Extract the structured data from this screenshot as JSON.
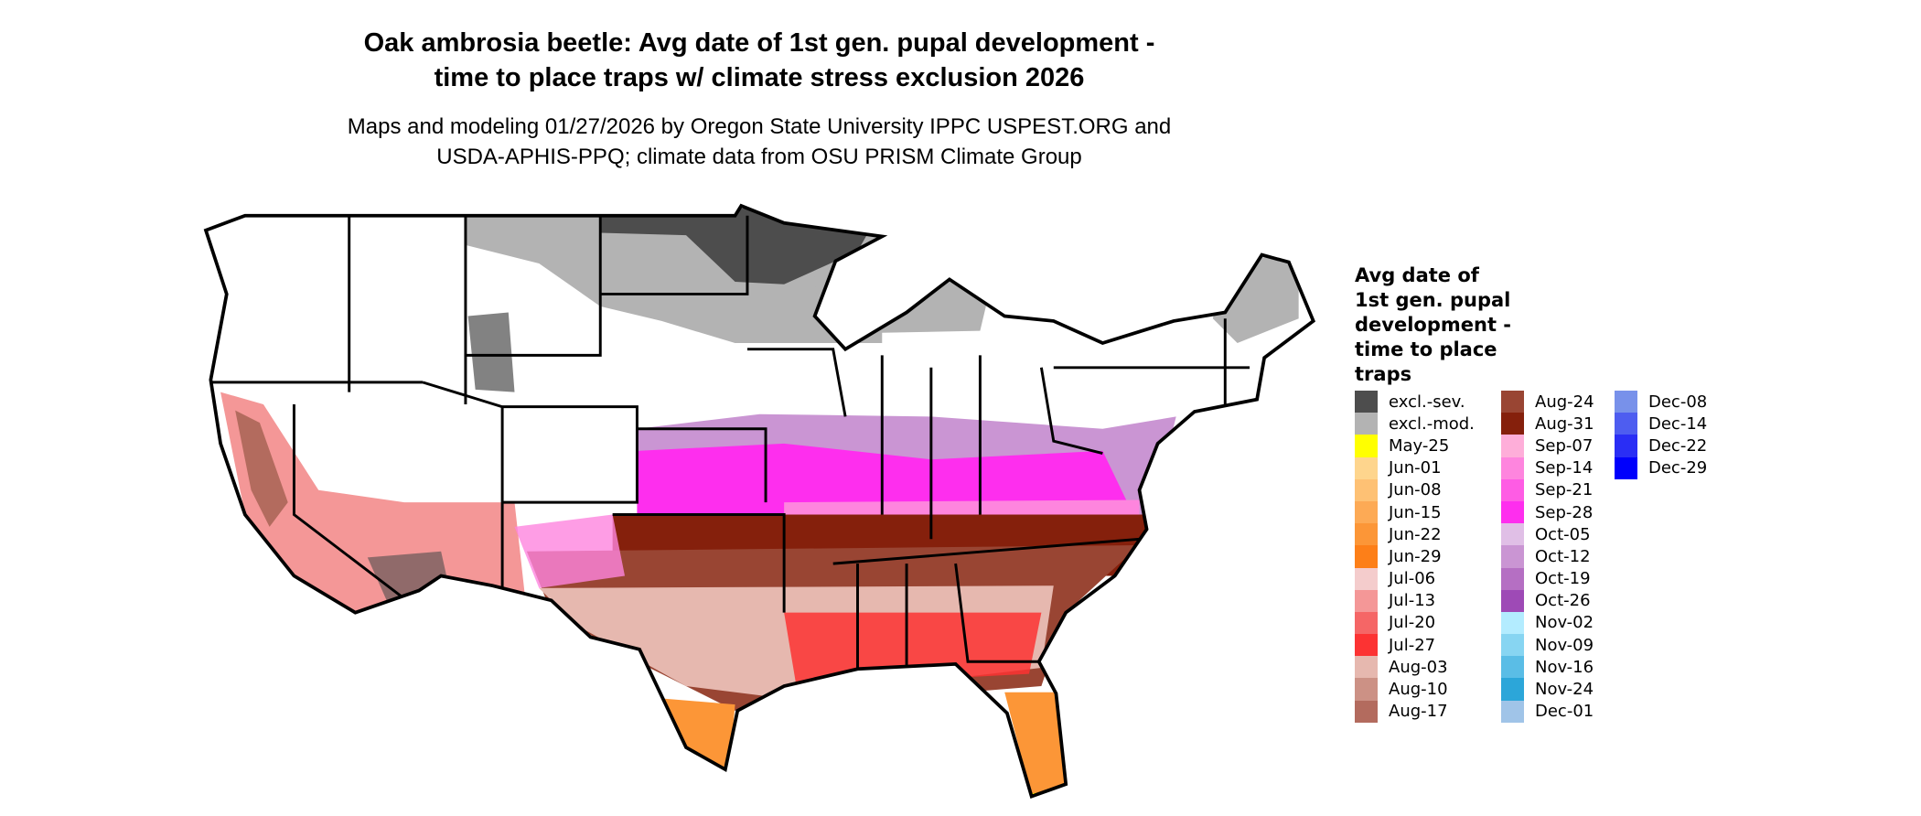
{
  "title": {
    "line1": "Oak ambrosia beetle: Avg date of 1st gen. pupal development -",
    "line2": "time to place traps w/ climate stress exclusion 2026"
  },
  "subtitle": {
    "line1": "Maps and modeling 01/27/2026 by Oregon State University IPPC USPEST.ORG and",
    "line2": "USDA-APHIS-PPQ; climate data from OSU PRISM Climate Group"
  },
  "legend": {
    "title_lines": [
      "Avg date of",
      "1st gen. pupal",
      "development -",
      "time to place",
      "traps"
    ],
    "columns": [
      [
        {
          "label": "excl.-sev.",
          "color": "#4d4d4d"
        },
        {
          "label": "excl.-mod.",
          "color": "#b3b3b3"
        },
        {
          "label": "May-25",
          "color": "#ffff00"
        },
        {
          "label": "Jun-01",
          "color": "#fed58d"
        },
        {
          "label": "Jun-08",
          "color": "#fec174"
        },
        {
          "label": "Jun-15",
          "color": "#fdaa55"
        },
        {
          "label": "Jun-22",
          "color": "#fc9637"
        },
        {
          "label": "Jun-29",
          "color": "#fd7f18"
        },
        {
          "label": "Jul-06",
          "color": "#f4cccc"
        },
        {
          "label": "Jul-13",
          "color": "#f49797"
        },
        {
          "label": "Jul-20",
          "color": "#f56666"
        },
        {
          "label": "Jul-27",
          "color": "#fc3333"
        },
        {
          "label": "Aug-03",
          "color": "#e6b8af"
        },
        {
          "label": "Aug-10",
          "color": "#cc9185"
        },
        {
          "label": "Aug-17",
          "color": "#b36b5e"
        }
      ],
      [
        {
          "label": "Aug-24",
          "color": "#994533"
        },
        {
          "label": "Aug-31",
          "color": "#85200c"
        },
        {
          "label": "Sep-07",
          "color": "#feaed9"
        },
        {
          "label": "Sep-14",
          "color": "#fe85de"
        },
        {
          "label": "Sep-21",
          "color": "#fe5ce4"
        },
        {
          "label": "Sep-28",
          "color": "#fe2eee"
        },
        {
          "label": "Oct-05",
          "color": "#e0bfe6"
        },
        {
          "label": "Oct-12",
          "color": "#ca95d3"
        },
        {
          "label": "Oct-19",
          "color": "#b56fc3"
        },
        {
          "label": "Oct-26",
          "color": "#9e4ab6"
        },
        {
          "label": "Nov-02",
          "color": "#b3ecff"
        },
        {
          "label": "Nov-09",
          "color": "#87d5f2"
        },
        {
          "label": "Nov-16",
          "color": "#5abde6"
        },
        {
          "label": "Nov-24",
          "color": "#2ca6d9"
        },
        {
          "label": "Dec-01",
          "color": "#a0c4e8"
        }
      ],
      [
        {
          "label": "Dec-08",
          "color": "#7891ea"
        },
        {
          "label": "Dec-14",
          "color": "#4e5df0"
        },
        {
          "label": "Dec-22",
          "color": "#2a2ef5"
        },
        {
          "label": "Dec-29",
          "color": "#0000fc"
        }
      ]
    ]
  }
}
